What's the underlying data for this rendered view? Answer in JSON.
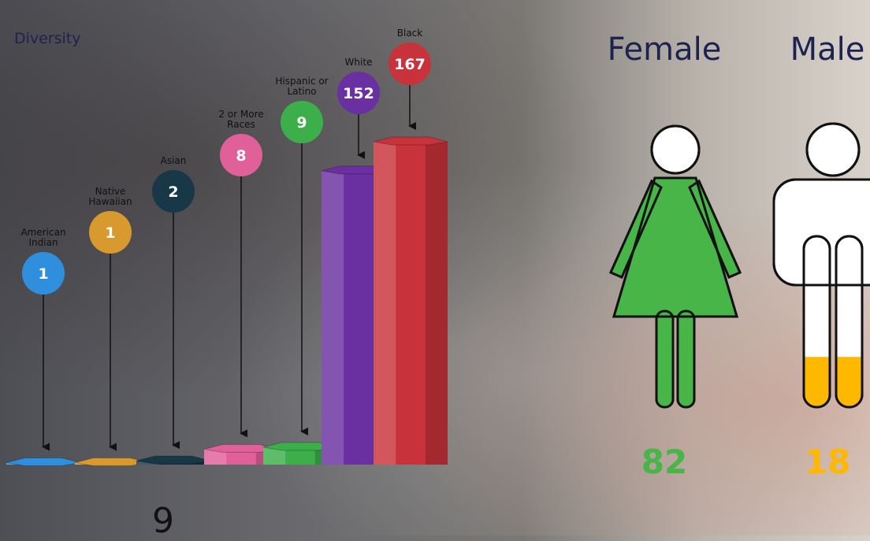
{
  "footnote": "9",
  "chart_data": [
    {
      "type": "bar",
      "title": "Diversity",
      "categories": [
        "American Indian",
        "Native Hawaiian",
        "Asian",
        "2 or More Races",
        "Hispanic or Latino",
        "White",
        "Black"
      ],
      "values": [
        1,
        1,
        2,
        8,
        9,
        152,
        167
      ],
      "colors": [
        "#2f8fdc",
        "#d89a2e",
        "#183848",
        "#e0609a",
        "#3cae4a",
        "#6a2fa0",
        "#c8323a"
      ]
    },
    {
      "type": "pictogram",
      "categories": [
        "Female",
        "Male"
      ],
      "values": [
        82,
        18
      ],
      "colors": [
        "#47b548",
        "#ffb800"
      ]
    }
  ]
}
